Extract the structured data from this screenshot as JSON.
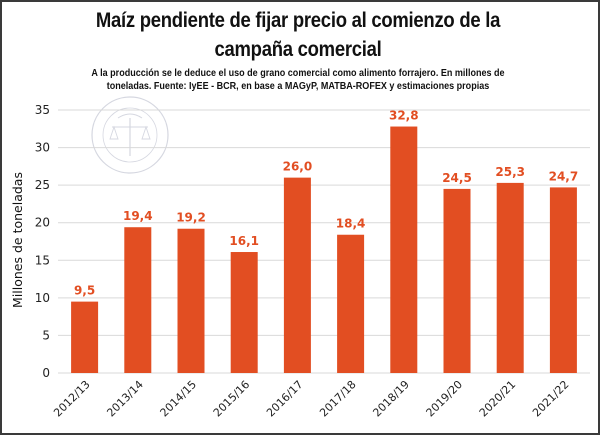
{
  "chart_data": {
    "type": "bar",
    "title_line1": "Maíz pendiente de fijar precio al comienzo  de la",
    "title_line2": "campaña comercial",
    "subtitle_line1": "A la producción se le deduce el uso de grano comercial como alimento forrajero. En millones de",
    "subtitle_line2": "toneladas. Fuente: IyEE - BCR, en base a MAGyP, MATBA-ROFEX y estimaciones propias",
    "xlabel": "",
    "ylabel": "Millones de toneladas",
    "ylim": [
      0,
      35
    ],
    "yticks": [
      0,
      5,
      10,
      15,
      20,
      25,
      30,
      35
    ],
    "grid": true,
    "categories": [
      "2012/13",
      "2013/14",
      "2014/15",
      "2015/16",
      "2016/17",
      "2017/18",
      "2018/19",
      "2019/20",
      "2020/21",
      "2021/22"
    ],
    "values": [
      9.5,
      19.4,
      19.2,
      16.1,
      26.0,
      18.4,
      32.8,
      24.5,
      25.3,
      24.7
    ],
    "value_labels": [
      "9,5",
      "19,4",
      "19,2",
      "16,1",
      "26,0",
      "18,4",
      "32,8",
      "24,5",
      "25,3",
      "24,7"
    ],
    "bar_color": "#e24e22",
    "label_color": "#e24e22",
    "watermark": "BOLSA DE COMERCIO DE ROSARIO"
  }
}
